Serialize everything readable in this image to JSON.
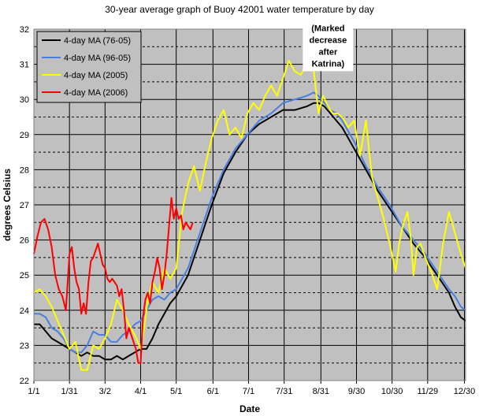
{
  "chart_data": {
    "type": "line",
    "title": "30-year average graph of Buoy 42001 water temperature by day",
    "xlabel": "Date",
    "ylabel": "degrees Celsius",
    "ylim": [
      22,
      32
    ],
    "xlim": [
      0,
      364
    ],
    "yticks": [
      22,
      23,
      24,
      25,
      26,
      27,
      28,
      29,
      30,
      31,
      32
    ],
    "xticks": [
      {
        "day": 0,
        "label": "1/1"
      },
      {
        "day": 30,
        "label": "1/31"
      },
      {
        "day": 60,
        "label": "3/2"
      },
      {
        "day": 90,
        "label": "4/1"
      },
      {
        "day": 120,
        "label": "5/1"
      },
      {
        "day": 151,
        "label": "6/1"
      },
      {
        "day": 181,
        "label": "7/1"
      },
      {
        "day": 211,
        "label": "7/31"
      },
      {
        "day": 242,
        "label": "8/31"
      },
      {
        "day": 272,
        "label": "9/30"
      },
      {
        "day": 302,
        "label": "10/30"
      },
      {
        "day": 332,
        "label": "11/29"
      },
      {
        "day": 363,
        "label": "12/30"
      }
    ],
    "grid": true,
    "legend_position": "top-left",
    "background": "#c0c0c0",
    "annotation": {
      "lines": [
        "(Marked",
        "decrease",
        "after",
        "Katrina)"
      ],
      "x_day": 248,
      "y_value": 30.4
    },
    "series": [
      {
        "name": "4-day MA (76-05)",
        "color": "#000000",
        "x": [
          0,
          5,
          10,
          15,
          20,
          25,
          30,
          35,
          40,
          45,
          50,
          55,
          60,
          65,
          70,
          75,
          80,
          85,
          90,
          95,
          100,
          105,
          110,
          115,
          120,
          130,
          140,
          150,
          160,
          170,
          180,
          190,
          200,
          210,
          220,
          230,
          236,
          240,
          245,
          250,
          255,
          260,
          270,
          280,
          290,
          300,
          310,
          320,
          330,
          340,
          350,
          355,
          360,
          364
        ],
        "y": [
          23.6,
          23.6,
          23.4,
          23.2,
          23.1,
          23.0,
          22.9,
          22.8,
          22.7,
          22.8,
          22.7,
          22.7,
          22.6,
          22.6,
          22.7,
          22.6,
          22.7,
          22.8,
          22.9,
          22.9,
          23.2,
          23.6,
          23.9,
          24.2,
          24.4,
          25.0,
          26.0,
          27.0,
          27.9,
          28.5,
          29.0,
          29.3,
          29.5,
          29.7,
          29.7,
          29.8,
          29.9,
          29.9,
          29.8,
          29.6,
          29.4,
          29.2,
          28.6,
          28.0,
          27.4,
          26.9,
          26.4,
          25.9,
          25.5,
          25.0,
          24.5,
          24.1,
          23.8,
          23.7
        ]
      },
      {
        "name": "4-day MA (96-05)",
        "color": "#4a7fe0",
        "x": [
          0,
          5,
          10,
          15,
          20,
          25,
          30,
          35,
          40,
          45,
          50,
          55,
          60,
          65,
          70,
          75,
          80,
          85,
          90,
          95,
          100,
          105,
          110,
          115,
          120,
          130,
          140,
          150,
          160,
          170,
          180,
          190,
          200,
          210,
          220,
          230,
          236,
          240,
          245,
          250,
          255,
          260,
          270,
          280,
          290,
          300,
          310,
          320,
          330,
          340,
          350,
          355,
          360,
          364
        ],
        "y": [
          23.9,
          23.9,
          23.8,
          23.5,
          23.4,
          23.2,
          22.9,
          22.8,
          22.8,
          23.0,
          23.4,
          23.3,
          23.3,
          23.1,
          23.1,
          23.3,
          23.4,
          23.6,
          23.7,
          24.0,
          24.3,
          24.4,
          24.3,
          24.5,
          24.6,
          25.2,
          26.2,
          27.2,
          28.0,
          28.6,
          29.0,
          29.4,
          29.6,
          29.9,
          30.0,
          30.1,
          30.2,
          30.1,
          29.9,
          29.7,
          29.6,
          29.4,
          28.8,
          28.1,
          27.5,
          27.0,
          26.4,
          26.0,
          25.6,
          25.1,
          24.6,
          24.4,
          24.1,
          24.0
        ]
      },
      {
        "name": "4-day MA (2005)",
        "color": "#ffff00",
        "x": [
          0,
          5,
          10,
          15,
          20,
          25,
          30,
          35,
          40,
          45,
          50,
          55,
          60,
          65,
          70,
          75,
          80,
          85,
          90,
          93,
          96,
          100,
          105,
          110,
          115,
          120,
          125,
          130,
          135,
          140,
          145,
          150,
          155,
          160,
          165,
          170,
          175,
          180,
          185,
          190,
          195,
          200,
          205,
          210,
          215,
          220,
          225,
          230,
          233,
          236,
          240,
          244,
          248,
          252,
          256,
          260,
          265,
          270,
          275,
          280,
          285,
          290,
          295,
          300,
          305,
          308,
          311,
          315,
          318,
          320,
          323,
          326,
          330,
          335,
          340,
          345,
          350,
          355,
          360,
          364
        ],
        "y": [
          24.5,
          24.6,
          24.4,
          24.1,
          23.7,
          23.3,
          22.9,
          23.1,
          22.3,
          22.3,
          23.0,
          22.9,
          23.2,
          23.6,
          24.3,
          24.0,
          23.6,
          23.3,
          22.9,
          23.5,
          24.3,
          24.8,
          24.5,
          25.2,
          24.9,
          25.2,
          26.8,
          27.6,
          28.1,
          27.4,
          28.2,
          28.9,
          29.4,
          29.7,
          29.0,
          29.2,
          28.9,
          29.6,
          29.9,
          29.7,
          30.1,
          30.4,
          30.1,
          30.6,
          31.1,
          30.8,
          30.7,
          31.0,
          31.5,
          30.8,
          29.6,
          30.1,
          29.8,
          29.6,
          29.6,
          29.5,
          29.2,
          29.4,
          28.4,
          29.4,
          27.8,
          27.2,
          26.6,
          25.9,
          25.1,
          25.9,
          26.4,
          26.8,
          26.0,
          25.0,
          25.8,
          25.9,
          25.5,
          25.1,
          24.6,
          25.9,
          26.8,
          26.2,
          25.6,
          25.2
        ]
      },
      {
        "name": "4-day MA (2006)",
        "color": "#ff0000",
        "x": [
          0,
          3,
          6,
          9,
          12,
          15,
          18,
          21,
          24,
          27,
          30,
          32,
          34,
          36,
          38,
          40,
          42,
          44,
          46,
          48,
          50,
          52,
          54,
          56,
          58,
          60,
          62,
          64,
          66,
          68,
          70,
          72,
          74,
          76,
          78,
          80,
          82,
          84,
          86,
          88,
          90,
          92,
          94,
          96,
          98,
          100,
          102,
          104,
          106,
          108,
          110,
          112,
          114,
          116,
          118,
          120,
          122,
          124,
          126,
          128,
          130,
          132,
          134
        ],
        "y": [
          25.6,
          26.1,
          26.5,
          26.6,
          26.3,
          25.8,
          25.0,
          24.6,
          24.4,
          24.0,
          25.6,
          25.8,
          25.2,
          24.8,
          24.6,
          23.9,
          24.2,
          23.9,
          24.8,
          25.4,
          25.5,
          25.7,
          25.9,
          25.6,
          25.3,
          25.2,
          24.9,
          24.8,
          24.9,
          24.8,
          24.7,
          24.4,
          24.6,
          24.0,
          23.2,
          23.5,
          23.3,
          23.1,
          22.9,
          22.5,
          22.5,
          23.8,
          24.3,
          24.5,
          24.2,
          24.8,
          25.1,
          25.5,
          25.2,
          24.6,
          25.0,
          25.6,
          26.4,
          27.2,
          26.6,
          26.9,
          26.6,
          26.7,
          26.3,
          26.5,
          26.4,
          26.3,
          26.5
        ]
      }
    ]
  }
}
